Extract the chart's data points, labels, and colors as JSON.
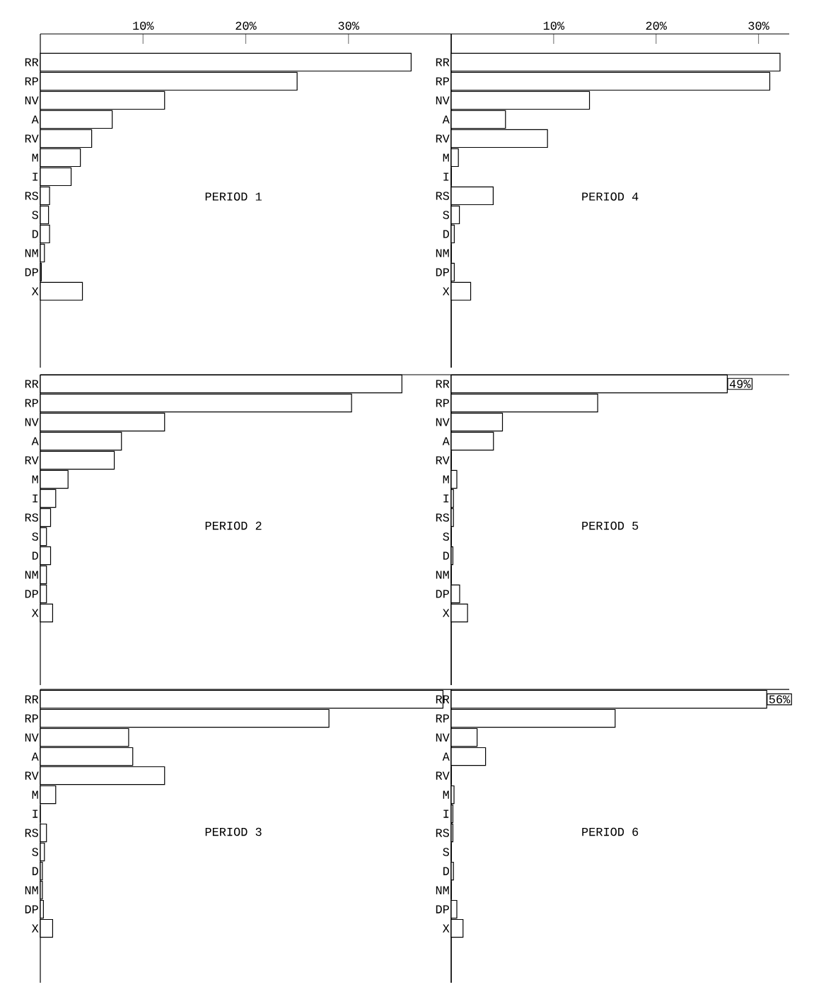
{
  "chart_data": [
    {
      "type": "bar",
      "orientation": "horizontal",
      "title": "PERIOD 1",
      "categories": [
        "RR",
        "RP",
        "NV",
        "A",
        "RV",
        "M",
        "I",
        "RS",
        "S",
        "D",
        "NM",
        "DP",
        "X"
      ],
      "values": [
        36.1,
        25.0,
        12.1,
        7.0,
        5.0,
        3.9,
        3.0,
        0.9,
        0.8,
        0.9,
        0.4,
        0.1,
        4.1
      ],
      "color": "#ffffff",
      "xlim": [
        0,
        40
      ],
      "xticks": [
        {
          "value": 10,
          "label": "10%"
        },
        {
          "value": 20,
          "label": "20%"
        },
        {
          "value": 30,
          "label": "30%"
        }
      ]
    },
    {
      "type": "bar",
      "orientation": "horizontal",
      "title": "PERIOD 4",
      "categories": [
        "RR",
        "RP",
        "NV",
        "A",
        "RV",
        "M",
        "I",
        "RS",
        "S",
        "D",
        "NM",
        "DP",
        "X"
      ],
      "values": [
        32.1,
        31.1,
        13.5,
        5.3,
        9.4,
        0.7,
        0,
        4.1,
        0.8,
        0.3,
        0,
        0.3,
        1.9
      ],
      "color": "#ffffff",
      "xlim": [
        0,
        33
      ],
      "xticks": [
        {
          "value": 10,
          "label": "10%"
        },
        {
          "value": 20,
          "label": "20%"
        },
        {
          "value": 30,
          "label": "30%"
        }
      ]
    },
    {
      "type": "bar",
      "orientation": "horizontal",
      "title": "PERIOD 2",
      "categories": [
        "RR",
        "RP",
        "NV",
        "A",
        "RV",
        "M",
        "I",
        "RS",
        "S",
        "D",
        "NM",
        "DP",
        "X"
      ],
      "values": [
        35.2,
        30.3,
        12.1,
        7.9,
        7.2,
        2.7,
        1.5,
        1.0,
        0.6,
        1.0,
        0.6,
        0.6,
        1.2
      ],
      "color": "#ffffff",
      "xlim": [
        0,
        40
      ],
      "tick_labels": "y"
    },
    {
      "type": "bar",
      "orientation": "horizontal",
      "title": "PERIOD 5",
      "categories": [
        "RR",
        "RP",
        "NV",
        "A",
        "RV",
        "M",
        "I",
        "RS",
        "S",
        "D",
        "NM",
        "DP",
        "X"
      ],
      "values": [
        49,
        26.0,
        9.1,
        7.5,
        0,
        1.0,
        0.4,
        0.4,
        0,
        0.3,
        0,
        1.5,
        2.9
      ],
      "value_labels": [
        "49%",
        null,
        null,
        null,
        null,
        null,
        null,
        null,
        null,
        null,
        null,
        null,
        null
      ],
      "color": "#ffffff",
      "xlim": [
        0,
        60
      ],
      "tick_labels": "y"
    },
    {
      "type": "bar",
      "orientation": "horizontal",
      "title": "PERIOD 3",
      "categories": [
        "RR",
        "RP",
        "NV",
        "A",
        "RV",
        "M",
        "I",
        "RS",
        "S",
        "D",
        "NM",
        "DP",
        "X"
      ],
      "values": [
        39.2,
        28.1,
        8.6,
        9.0,
        12.1,
        1.5,
        0,
        0.6,
        0.4,
        0.2,
        0.2,
        0.3,
        1.2
      ],
      "color": "#ffffff",
      "xlim": [
        0,
        40
      ],
      "tick_labels": "y"
    },
    {
      "type": "bar",
      "orientation": "horizontal",
      "title": "PERIOD 6",
      "categories": [
        "RR",
        "RP",
        "NV",
        "A",
        "RV",
        "M",
        "I",
        "RS",
        "S",
        "D",
        "NM",
        "DP",
        "X"
      ],
      "values": [
        56,
        29.1,
        4.6,
        6.1,
        0,
        0.5,
        0.3,
        0.3,
        0,
        0.4,
        0,
        1.0,
        2.1
      ],
      "value_labels": [
        "56%",
        null,
        null,
        null,
        null,
        null,
        null,
        null,
        null,
        null,
        null,
        null,
        null
      ],
      "color": "#ffffff",
      "xlim": [
        0,
        60
      ],
      "tick_labels": "y"
    }
  ]
}
